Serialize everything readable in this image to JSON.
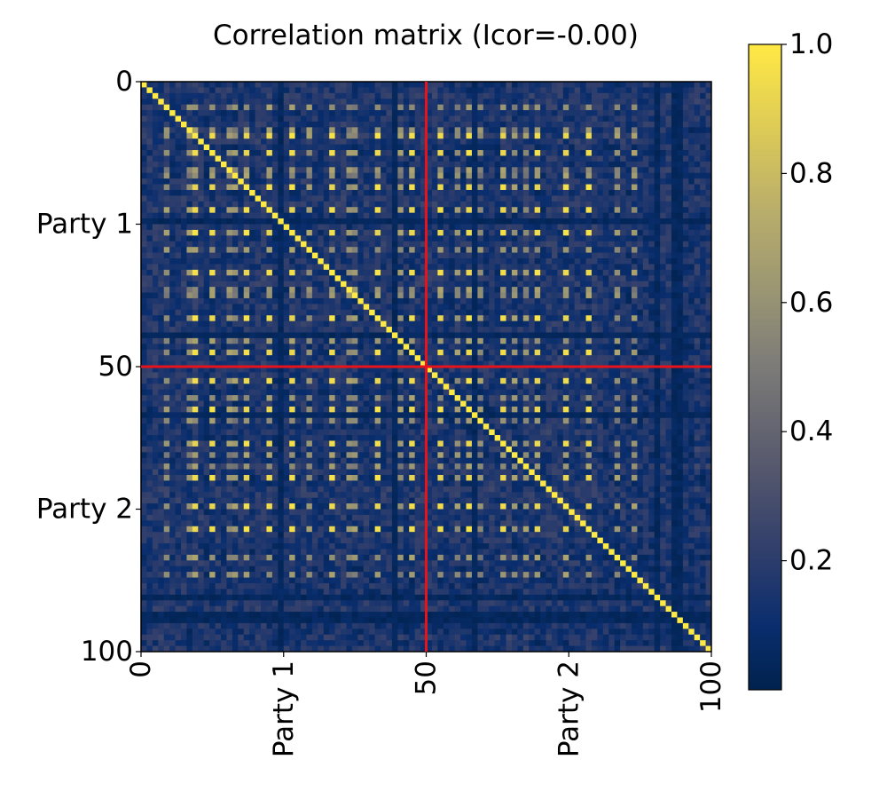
{
  "chart_data": {
    "type": "heatmap",
    "title": "Correlation matrix (Icor=-0.00)",
    "size": 100,
    "partition_at": 50,
    "x_ticks": [
      {
        "value": 0,
        "label": "0"
      },
      {
        "value": 25,
        "label": "Party 1"
      },
      {
        "value": 50,
        "label": "50"
      },
      {
        "value": 75,
        "label": "Party 2"
      },
      {
        "value": 100,
        "label": "100"
      }
    ],
    "y_ticks": [
      {
        "value": 0,
        "label": "0"
      },
      {
        "value": 25,
        "label": "Party 1"
      },
      {
        "value": 50,
        "label": "50"
      },
      {
        "value": 75,
        "label": "Party 2"
      },
      {
        "value": 100,
        "label": "100"
      }
    ],
    "colorbar": {
      "min": 0.0,
      "max": 1.0,
      "ticks": [
        {
          "value": 0.2,
          "label": "0.2"
        },
        {
          "value": 0.4,
          "label": "0.4"
        },
        {
          "value": 0.6,
          "label": "0.6"
        },
        {
          "value": 0.8,
          "label": "0.8"
        },
        {
          "value": 1.0,
          "label": "1.0"
        }
      ]
    },
    "colormap": "cividis",
    "partition_line_color": "#e8121b",
    "diagonal_value": 1.0,
    "block_correlation_value": 0.9,
    "background_range": [
      0.02,
      0.28
    ],
    "high_indices": [
      9,
      12,
      18,
      22,
      26,
      33,
      41,
      47,
      52,
      57,
      63,
      69,
      74,
      78
    ],
    "mid_indices": [
      4,
      8,
      15,
      16,
      29,
      36,
      37,
      45,
      55,
      59,
      65,
      67,
      83,
      86
    ],
    "low_band_indices": [
      24,
      44,
      58,
      90,
      93,
      94
    ]
  }
}
